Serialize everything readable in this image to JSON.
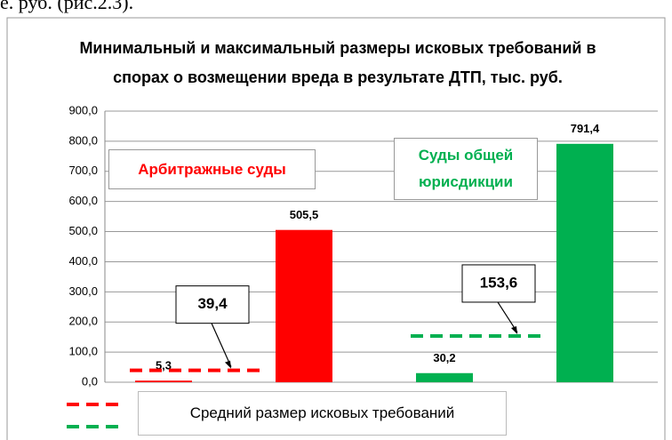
{
  "caption": "е. руб. (рис.2.3).",
  "chart_data": {
    "type": "bar",
    "title": "Минимальный и максимальный размеры исковых требований в спорах о возмещении вреда в результате ДТП, тыс. руб.",
    "categories": [
      null,
      null,
      null,
      null
    ],
    "values": [
      5.3,
      505.5,
      30.2,
      791.4
    ],
    "value_labels": [
      "5,3",
      "505,5",
      "30,2",
      "791,4"
    ],
    "colors": [
      "#ff0000",
      "#ff0000",
      "#00b050",
      "#00b050"
    ],
    "groups": [
      {
        "label": "Арбитражные суды",
        "color": "#ff0000",
        "average": 39.4,
        "average_label": "39,4"
      },
      {
        "label": "Суды общей юрисдикции",
        "color": "#00b050",
        "average": 153.6,
        "average_label": "153,6"
      }
    ],
    "legend": "Средний размер исковых требований",
    "ylim": [
      0,
      900
    ],
    "yticks": [
      {
        "value": 0,
        "label": "0,0"
      },
      {
        "value": 100,
        "label": "100,0"
      },
      {
        "value": 200,
        "label": "200,0"
      },
      {
        "value": 300,
        "label": "300,0"
      },
      {
        "value": 400,
        "label": "400,0"
      },
      {
        "value": 500,
        "label": "500,0"
      },
      {
        "value": 600,
        "label": "600,0"
      },
      {
        "value": 700,
        "label": "700,0"
      },
      {
        "value": 800,
        "label": "800,0"
      },
      {
        "value": 900,
        "label": "900,0"
      }
    ],
    "grid": true
  }
}
